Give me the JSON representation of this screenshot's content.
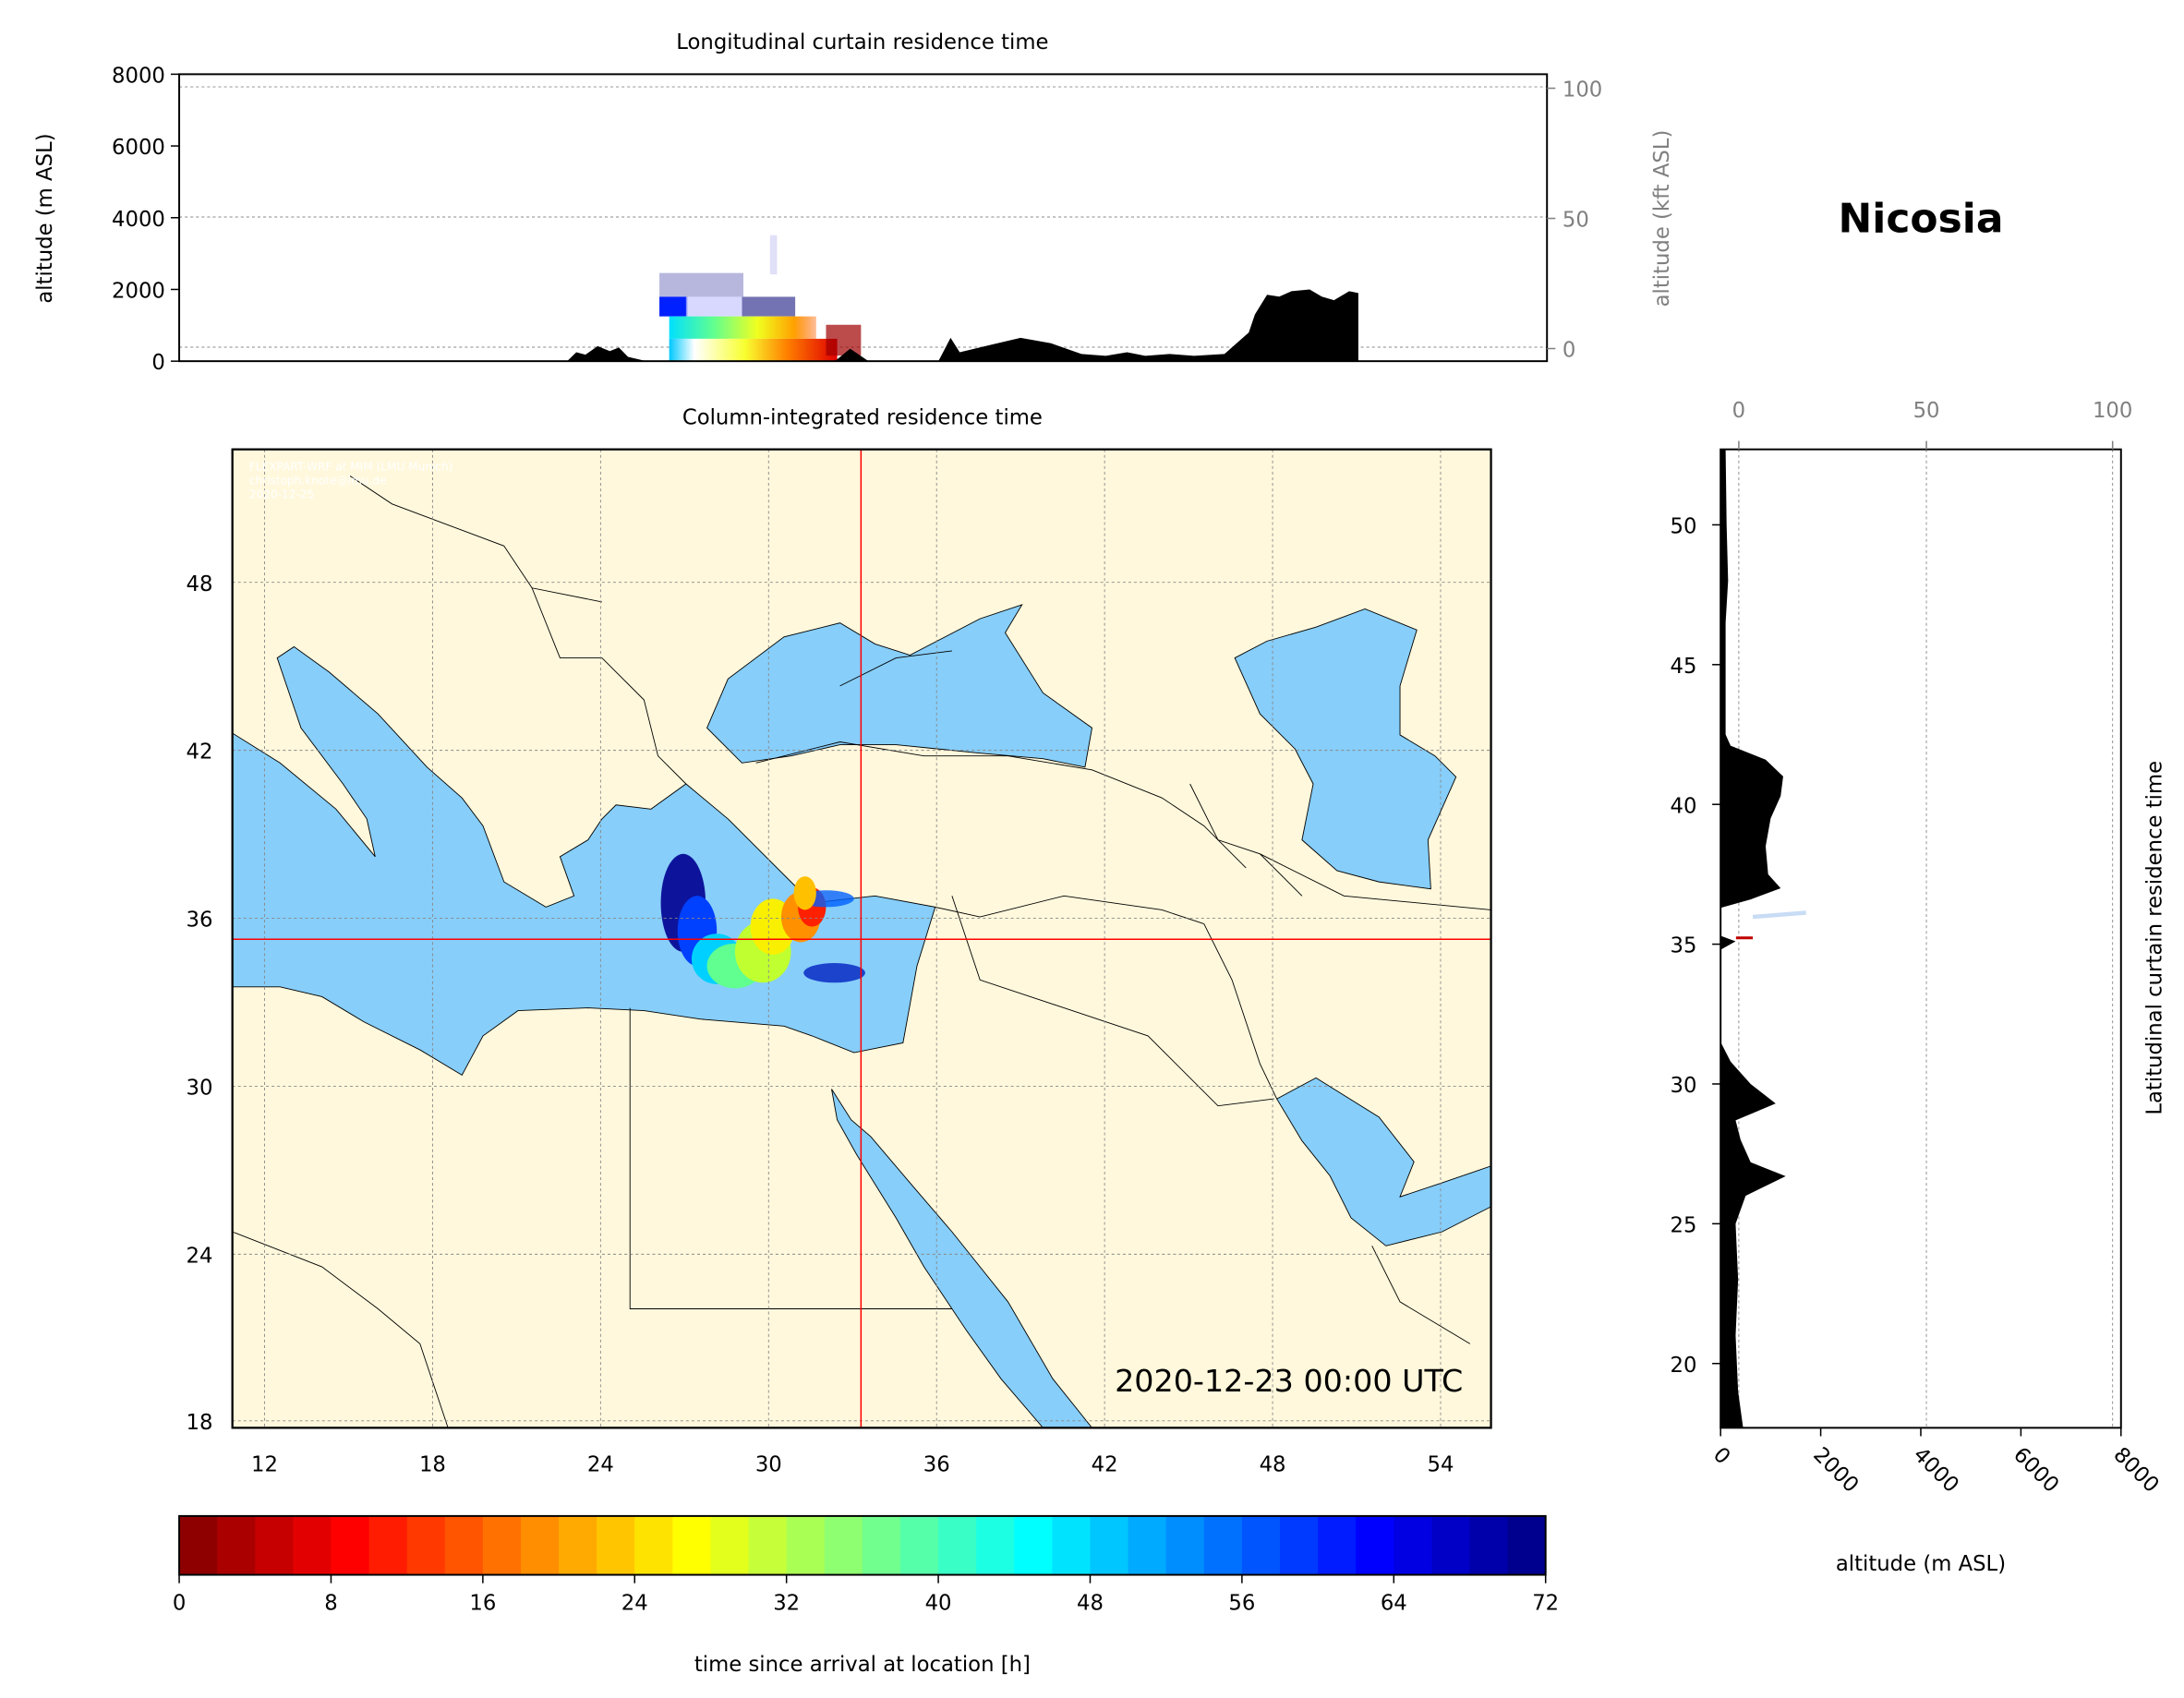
{
  "location": "Nicosia",
  "watermark": [
    "FLEXPART-WRF at MIM (LMU Munich)",
    "christoph.knote@lmu.de",
    "2020-12-25"
  ],
  "colors": {
    "land": "#fff8dc",
    "sea": "#87cefa",
    "terrain": "#000000",
    "crosshair": "#ff0000"
  },
  "chart_data": [
    {
      "id": "longitudinal",
      "type": "area",
      "title": "Longitudinal curtain residence time",
      "ylabel": "altitude (m ASL)",
      "ylabel_right": "altitude (kft ASL)",
      "ylim": [
        0,
        8000
      ],
      "xlim": [
        10.85,
        55.8
      ],
      "yticks": [
        "0",
        "2000",
        "4000",
        "6000",
        "8000"
      ],
      "yticks_right": [
        "0",
        "50",
        "100"
      ],
      "grid": true,
      "terrain": [
        [
          [
            23.6,
            0
          ],
          [
            23.9,
            250
          ],
          [
            24.2,
            180
          ],
          [
            24.6,
            420
          ],
          [
            25.0,
            280
          ],
          [
            25.3,
            380
          ],
          [
            25.6,
            120
          ],
          [
            26.2,
            0
          ]
        ],
        [
          [
            32.4,
            0
          ],
          [
            32.9,
            350
          ],
          [
            33.5,
            0
          ]
        ],
        [
          [
            35.8,
            0
          ],
          [
            36.2,
            650
          ],
          [
            36.5,
            250
          ],
          [
            37.5,
            450
          ],
          [
            38.5,
            650
          ],
          [
            39.5,
            500
          ],
          [
            40.5,
            200
          ],
          [
            41.3,
            150
          ],
          [
            42.0,
            250
          ],
          [
            42.6,
            150
          ],
          [
            43.4,
            200
          ],
          [
            44.2,
            150
          ],
          [
            45.2,
            200
          ],
          [
            45.6,
            500
          ],
          [
            46.0,
            800
          ],
          [
            46.2,
            1300
          ],
          [
            46.6,
            1850
          ],
          [
            47.0,
            1800
          ],
          [
            47.4,
            1950
          ],
          [
            48.0,
            2000
          ],
          [
            48.4,
            1800
          ],
          [
            48.8,
            1700
          ],
          [
            49.3,
            1950
          ],
          [
            49.6,
            1900
          ],
          [
            49.6,
            0
          ]
        ]
      ]
    },
    {
      "id": "column",
      "type": "heatmap",
      "title": "Column-integrated residence time",
      "xlim": [
        10.85,
        55.8
      ],
      "ylim": [
        17.75,
        52.7
      ],
      "xticks": [
        "12",
        "18",
        "24",
        "30",
        "36",
        "42",
        "48",
        "54"
      ],
      "yticks": [
        "18",
        "24",
        "30",
        "36",
        "42",
        "48"
      ],
      "crosshair": {
        "lon": 33.3,
        "lat": 35.25
      },
      "timestamp": "2020-12-23 00:00 UTC",
      "grid": true
    },
    {
      "id": "latitudinal",
      "type": "area",
      "ylabel": "Latitudinal curtain residence time",
      "xlabel": "altitude (m ASL)",
      "xlim": [
        0,
        8000
      ],
      "ylim": [
        17.7,
        52.7
      ],
      "xticks": [
        "0",
        "2000",
        "4000",
        "6000",
        "8000"
      ],
      "xticks_top": [
        "0",
        "50",
        "100"
      ],
      "yticks": [
        "20",
        "25",
        "30",
        "35",
        "40",
        "45",
        "50"
      ],
      "grid": true,
      "terrain": [
        [
          17.7,
          450
        ],
        [
          19,
          350
        ],
        [
          21,
          300
        ],
        [
          23,
          350
        ],
        [
          25,
          300
        ],
        [
          26,
          500
        ],
        [
          26.7,
          1300
        ],
        [
          27.2,
          600
        ],
        [
          28,
          400
        ],
        [
          28.7,
          300
        ],
        [
          29.3,
          1100
        ],
        [
          30,
          600
        ],
        [
          30.8,
          200
        ],
        [
          31.5,
          0
        ],
        [
          34.8,
          0
        ],
        [
          35.1,
          300
        ],
        [
          35.3,
          0
        ],
        [
          36.3,
          0
        ],
        [
          36.6,
          600
        ],
        [
          37,
          1200
        ],
        [
          37.5,
          950
        ],
        [
          38.5,
          900
        ],
        [
          39.5,
          1000
        ],
        [
          40.3,
          1200
        ],
        [
          41,
          1250
        ],
        [
          41.6,
          900
        ],
        [
          42.1,
          200
        ],
        [
          42.5,
          100
        ],
        [
          46.5,
          100
        ],
        [
          48,
          150
        ],
        [
          50,
          120
        ],
        [
          52.7,
          100
        ]
      ]
    },
    {
      "id": "colorbar",
      "type": "colorbar",
      "label": "time since arrival at location [h]",
      "range": [
        0,
        72
      ],
      "ticks": [
        "0",
        "8",
        "16",
        "24",
        "32",
        "40",
        "48",
        "56",
        "64",
        "72"
      ],
      "colormap": "jet_r"
    }
  ]
}
